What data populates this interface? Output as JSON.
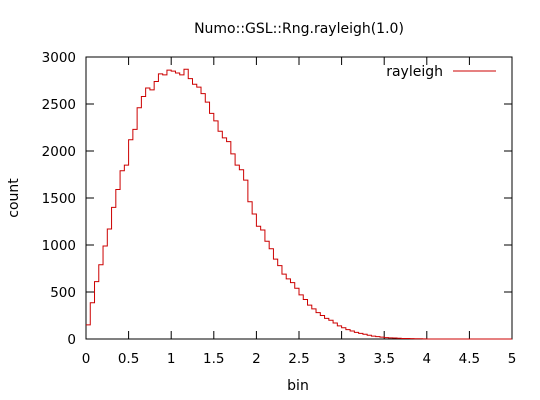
{
  "chart_data": {
    "type": "step",
    "title": "Numo::GSL::Rng.rayleigh(1.0)",
    "xlabel": "bin",
    "ylabel": "count",
    "xlim": [
      0,
      5
    ],
    "ylim": [
      0,
      3000
    ],
    "x_ticks": [
      0,
      0.5,
      1,
      1.5,
      2,
      2.5,
      3,
      3.5,
      4,
      4.5,
      5
    ],
    "x_tick_labels": [
      "0",
      "0.5",
      "1",
      "1.5",
      "2",
      "2.5",
      "3",
      "3.5",
      "4",
      "4.5",
      "5"
    ],
    "y_ticks": [
      0,
      500,
      1000,
      1500,
      2000,
      2500,
      3000
    ],
    "y_tick_labels": [
      "0",
      "500",
      "1000",
      "1500",
      "2000",
      "2500",
      "3000"
    ],
    "grid": false,
    "legend_position": "top-right",
    "series": [
      {
        "name": "rayleigh",
        "color": "#cc0000",
        "bin_width": 0.05,
        "bin_start": 0,
        "values": [
          150,
          385,
          610,
          790,
          990,
          1170,
          1400,
          1590,
          1790,
          1850,
          2120,
          2230,
          2460,
          2580,
          2670,
          2650,
          2740,
          2820,
          2810,
          2860,
          2850,
          2830,
          2810,
          2870,
          2770,
          2710,
          2680,
          2610,
          2520,
          2400,
          2320,
          2210,
          2140,
          2100,
          1970,
          1850,
          1800,
          1690,
          1460,
          1330,
          1200,
          1160,
          1040,
          960,
          850,
          780,
          690,
          640,
          600,
          540,
          470,
          420,
          360,
          320,
          280,
          250,
          220,
          200,
          170,
          140,
          120,
          100,
          85,
          70,
          60,
          50,
          40,
          30,
          25,
          20,
          15,
          12,
          10,
          8,
          6,
          5,
          4,
          3,
          2,
          1,
          0,
          0,
          0,
          0,
          0,
          0,
          0,
          0,
          0,
          0,
          0,
          0,
          0,
          0,
          0,
          0,
          0,
          0,
          0,
          0
        ]
      }
    ]
  }
}
